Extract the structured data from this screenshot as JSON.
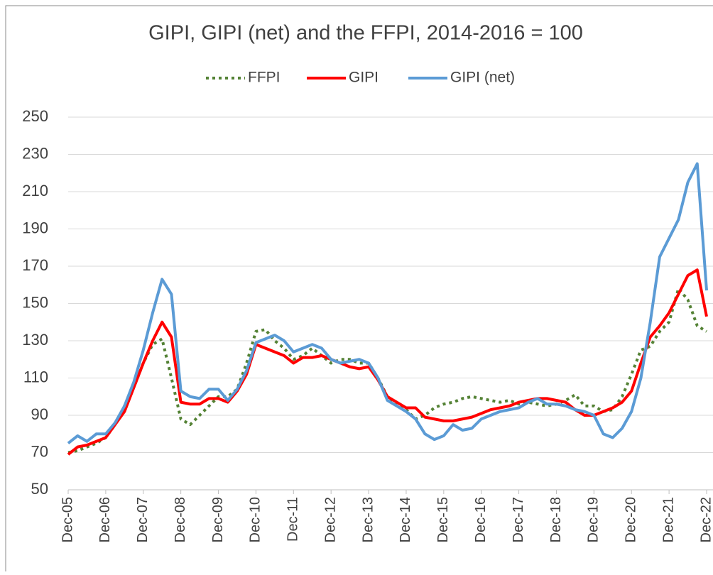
{
  "chart_data": {
    "type": "line",
    "title": "GIPI, GIPI (net) and the FFPI, 2014-2016 = 100",
    "categories": [
      "Dec-05",
      null,
      null,
      null,
      "Dec-06",
      null,
      null,
      null,
      "Dec-07",
      null,
      null,
      null,
      "Dec-08",
      null,
      null,
      null,
      "Dec-09",
      null,
      null,
      null,
      "Dec-10",
      null,
      null,
      null,
      "Dec-11",
      null,
      null,
      null,
      "Dec-12",
      null,
      null,
      null,
      "Dec-13",
      null,
      null,
      null,
      "Dec-14",
      null,
      null,
      null,
      "Dec-15",
      null,
      null,
      null,
      "Dec-16",
      null,
      null,
      null,
      "Dec-17",
      null,
      null,
      null,
      "Dec-18",
      null,
      null,
      null,
      "Dec-19",
      null,
      null,
      null,
      "Dec-20",
      null,
      null,
      null,
      "Dec-21",
      null,
      null,
      null,
      "Dec-22"
    ],
    "series": [
      {
        "name": "FFPI",
        "color": "#548235",
        "style": "dotted",
        "values": [
          70,
          71,
          73,
          75,
          78,
          85,
          95,
          105,
          118,
          128,
          131,
          110,
          88,
          85,
          90,
          95,
          100,
          100,
          104,
          118,
          135,
          136,
          130,
          126,
          120,
          122,
          126,
          122,
          118,
          120,
          120,
          118,
          118,
          110,
          100,
          95,
          93,
          88,
          90,
          94,
          96,
          97,
          99,
          100,
          99,
          98,
          97,
          98,
          96,
          97,
          96,
          95,
          96,
          98,
          101,
          95,
          95,
          92,
          93,
          100,
          112,
          125,
          127,
          135,
          140,
          158,
          152,
          138,
          135
        ]
      },
      {
        "name": "GIPI",
        "color": "#ff0000",
        "style": "solid",
        "values": [
          69,
          73,
          74,
          76,
          78,
          85,
          92,
          105,
          118,
          130,
          140,
          132,
          97,
          96,
          96,
          99,
          99,
          97,
          103,
          112,
          128,
          126,
          124,
          122,
          118,
          121,
          121,
          122,
          120,
          118,
          116,
          115,
          116,
          109,
          100,
          97,
          94,
          94,
          89,
          88,
          87,
          87,
          88,
          89,
          91,
          93,
          94,
          95,
          97,
          98,
          99,
          99,
          98,
          97,
          93,
          90,
          90,
          92,
          94,
          97,
          103,
          118,
          132,
          138,
          145,
          155,
          165,
          168,
          143
        ]
      },
      {
        "name": "GIPI (net)",
        "color": "#5b9bd5",
        "style": "solid",
        "values": [
          75,
          79,
          76,
          80,
          80,
          86,
          95,
          108,
          125,
          145,
          163,
          155,
          103,
          100,
          99,
          104,
          104,
          98,
          104,
          114,
          129,
          131,
          133,
          130,
          124,
          126,
          128,
          126,
          120,
          118,
          119,
          120,
          118,
          110,
          98,
          95,
          92,
          88,
          80,
          77,
          79,
          85,
          82,
          83,
          88,
          90,
          92,
          93,
          94,
          97,
          99,
          96,
          96,
          95,
          93,
          92,
          90,
          80,
          78,
          83,
          92,
          110,
          140,
          175,
          185,
          195,
          215,
          225,
          157
        ]
      }
    ],
    "ylim": [
      50,
      250
    ],
    "yticks": [
      50,
      70,
      90,
      110,
      130,
      150,
      170,
      190,
      210,
      230,
      250
    ],
    "grid": true,
    "legend": "top"
  }
}
